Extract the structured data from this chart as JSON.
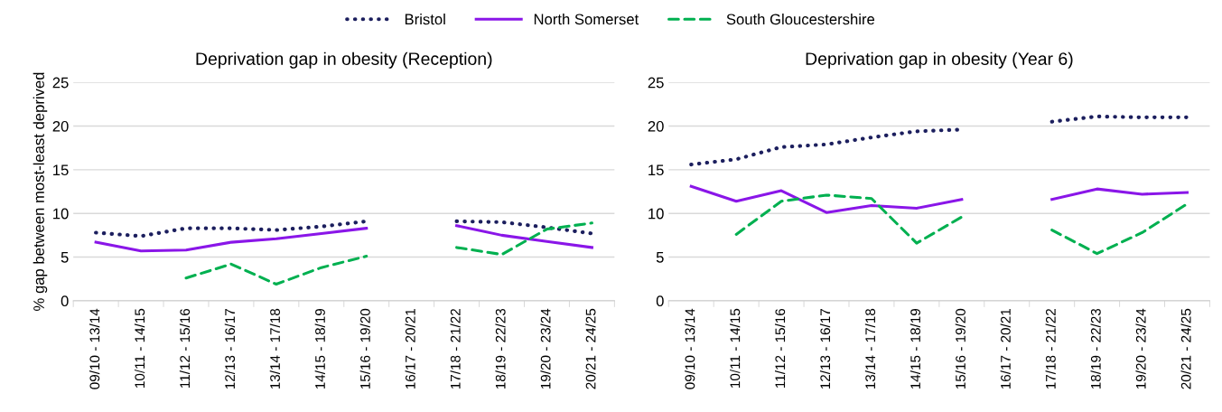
{
  "chart_data": [
    {
      "type": "line",
      "title": "Deprivation gap in obesity (Reception)",
      "ylabel": "% gap between most-least deprived",
      "categories": [
        "09/10 - 13/14",
        "10/11 - 14/15",
        "11/12 - 15/16",
        "12/13 - 16/17",
        "13/14 - 17/18",
        "14/15 - 18/19",
        "15/16 - 19/20",
        "16/17 - 20/21",
        "17/18 - 21/22",
        "18/19 - 22/23",
        "19/20 - 23/24",
        "20/21 - 24/25"
      ],
      "series": [
        {
          "name": "Bristol",
          "color": "#1c1f5e",
          "line_style": "dotted",
          "values": [
            7.8,
            7.4,
            8.3,
            8.3,
            8.1,
            8.5,
            9.1,
            null,
            9.1,
            9.0,
            8.4,
            7.7
          ]
        },
        {
          "name": "North Somerset",
          "color": "#8a16e8",
          "line_style": "solid",
          "values": [
            6.7,
            5.7,
            5.8,
            6.7,
            7.1,
            7.7,
            8.3,
            null,
            8.6,
            7.5,
            6.8,
            6.1
          ]
        },
        {
          "name": "South Gloucestershire",
          "color": "#00b050",
          "line_style": "dashed",
          "values": [
            null,
            null,
            2.6,
            4.2,
            1.9,
            3.8,
            5.1,
            null,
            6.1,
            5.3,
            8.2,
            8.9
          ]
        }
      ],
      "ylim": [
        0,
        25
      ],
      "yticks": [
        0,
        5,
        10,
        15,
        20,
        25
      ],
      "grid": "y",
      "legend": "top"
    },
    {
      "type": "line",
      "title": "Deprivation gap in obesity (Year 6)",
      "categories": [
        "09/10 - 13/14",
        "10/11 - 14/15",
        "11/12 - 15/16",
        "12/13 - 16/17",
        "13/14 - 17/18",
        "14/15 - 18/19",
        "15/16 - 19/20",
        "16/17 - 20/21",
        "17/18 - 21/22",
        "18/19 - 22/23",
        "19/20 - 23/24",
        "20/21 - 24/25"
      ],
      "series": [
        {
          "color": "#1c1f5e",
          "line_style": "dotted",
          "values": [
            15.6,
            16.2,
            17.6,
            17.9,
            18.7,
            19.4,
            19.6,
            null,
            20.5,
            21.1,
            21.0,
            21.0
          ]
        },
        {
          "color": "#8a16e8",
          "line_style": "solid",
          "values": [
            13.1,
            11.4,
            12.6,
            10.1,
            10.9,
            10.6,
            11.6,
            null,
            11.6,
            12.8,
            12.2,
            12.4
          ]
        },
        {
          "color": "#00b050",
          "line_style": "dashed",
          "values": [
            null,
            7.6,
            11.4,
            12.1,
            11.7,
            6.6,
            9.6,
            null,
            8.1,
            5.4,
            7.8,
            11.1
          ]
        }
      ],
      "ylim": [
        0,
        25
      ],
      "yticks": [
        0,
        5,
        10,
        15,
        20,
        25
      ],
      "grid": "y"
    }
  ]
}
